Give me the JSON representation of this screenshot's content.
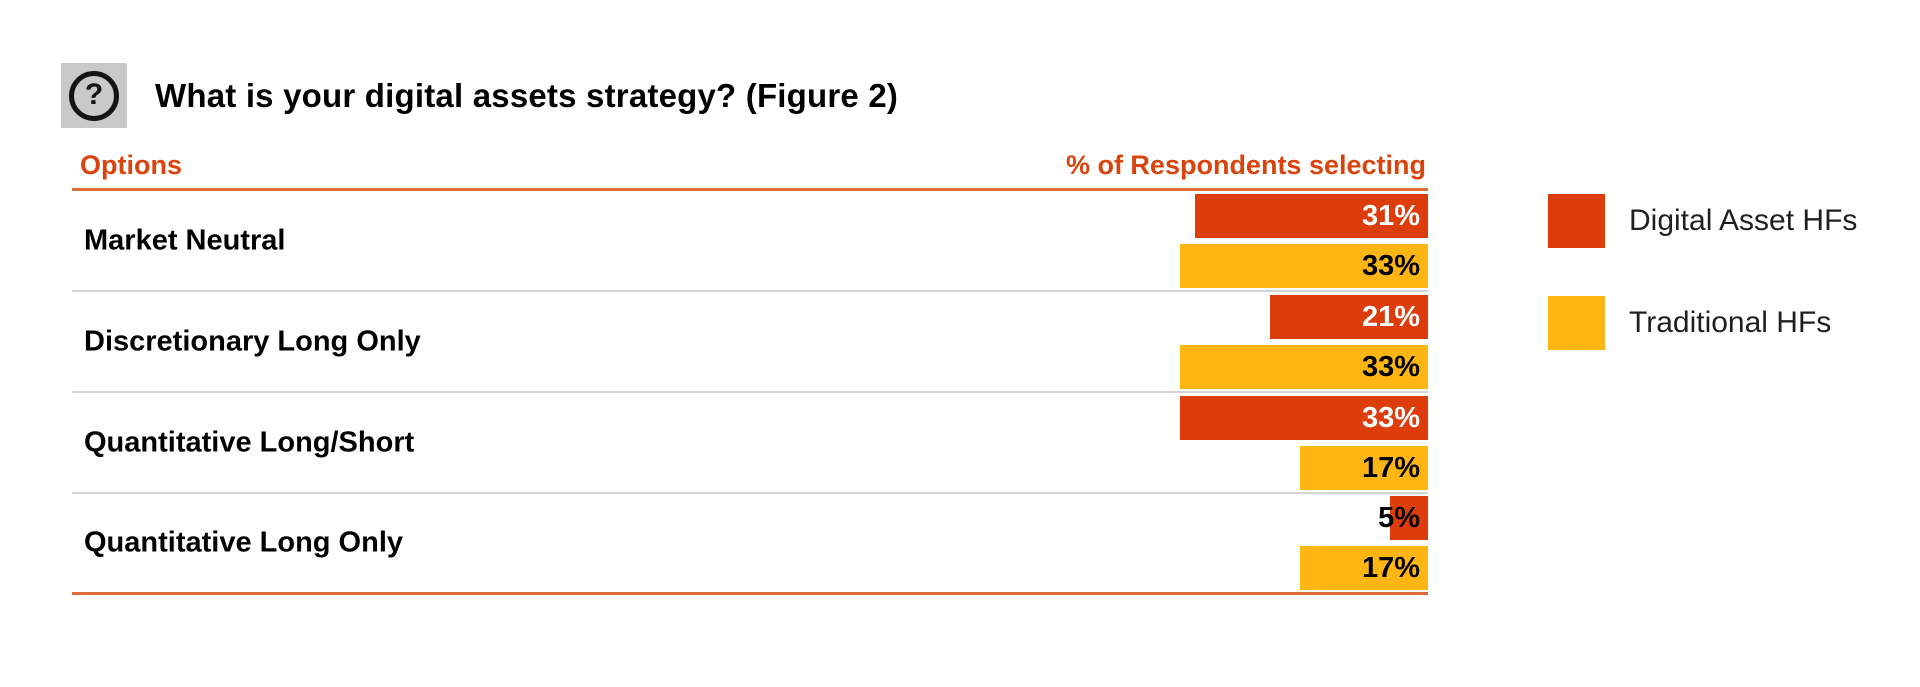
{
  "header": {
    "icon_glyph": "?",
    "title": "What is your digital assets strategy? (Figure 2)"
  },
  "table": {
    "columns": [
      "Options",
      "% of Respondents selecting"
    ]
  },
  "legend": {
    "items": [
      {
        "label": "Digital Asset HFs",
        "color": "#dc3d0a"
      },
      {
        "label": "Traditional HFs",
        "color": "#ffb612"
      }
    ]
  },
  "colors": {
    "digital_asset_red": "#dc3d0a",
    "traditional_yellow": "#ffb612",
    "header_text_orange": "#d9440e",
    "rule_orange": "#de6b38",
    "divider_gray": "#d4d4d4",
    "help_icon_background": "#c9c9c9"
  },
  "chart_data": {
    "type": "bar",
    "orientation": "horizontal",
    "title": "What is your digital assets strategy? (Figure 2)",
    "xlabel": "% of Respondents selecting",
    "ylabel": "Options",
    "xlim": [
      0,
      33
    ],
    "grid": false,
    "legend_position": "right",
    "categories": [
      "Market Neutral",
      "Discretionary Long Only",
      "Quantitative Long/Short",
      "Quantitative Long Only"
    ],
    "series": [
      {
        "name": "Digital Asset HFs",
        "color": "#dc3d0a",
        "values": [
          31,
          21,
          33,
          5
        ],
        "value_labels": [
          "31%",
          "21%",
          "33%",
          "5%"
        ]
      },
      {
        "name": "Traditional HFs",
        "color": "#ffb612",
        "values": [
          33,
          33,
          17,
          17
        ],
        "value_labels": [
          "33%",
          "33%",
          "17%",
          "17%"
        ]
      }
    ]
  }
}
